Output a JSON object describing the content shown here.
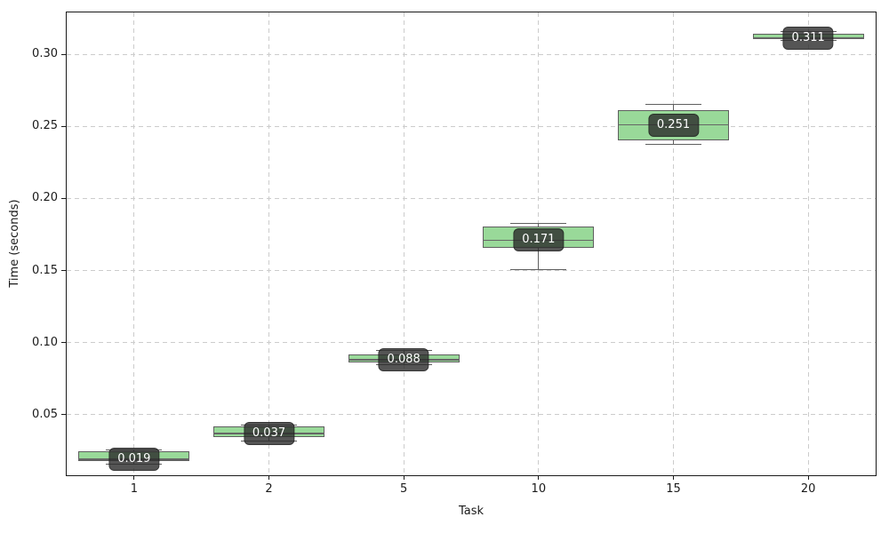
{
  "chart_data": {
    "type": "box",
    "xlabel": "Task",
    "ylabel": "Time (seconds)",
    "categories": [
      "1",
      "2",
      "5",
      "10",
      "15",
      "20"
    ],
    "ylim": [
      0.008,
      0.329
    ],
    "yticks": [
      0.05,
      0.1,
      0.15,
      0.2,
      0.25,
      0.3
    ],
    "grid": {
      "visible": true,
      "style": "dashed",
      "axes": "both"
    },
    "boxes": [
      {
        "category": "1",
        "whislo": 0.0155,
        "q1": 0.018,
        "median": 0.019,
        "q3": 0.0245,
        "whishi": 0.0255,
        "label": "0.019"
      },
      {
        "category": "2",
        "whislo": 0.0315,
        "q1": 0.0345,
        "median": 0.037,
        "q3": 0.042,
        "whishi": 0.043,
        "label": "0.037"
      },
      {
        "category": "5",
        "whislo": 0.085,
        "q1": 0.086,
        "median": 0.088,
        "q3": 0.0915,
        "whishi": 0.0945,
        "label": "0.088"
      },
      {
        "category": "10",
        "whislo": 0.1505,
        "q1": 0.1655,
        "median": 0.171,
        "q3": 0.1805,
        "whishi": 0.1825,
        "label": "0.171"
      },
      {
        "category": "15",
        "whislo": 0.2375,
        "q1": 0.2405,
        "median": 0.251,
        "q3": 0.2615,
        "whishi": 0.2655,
        "label": "0.251"
      },
      {
        "category": "20",
        "whislo": 0.3095,
        "q1": 0.3105,
        "median": 0.311,
        "q3": 0.3145,
        "whishi": 0.3155,
        "label": "0.311"
      }
    ],
    "colors": {
      "box_fill": "#99d999",
      "box_edge": "#5f5f5f",
      "whisker": "#5f5f5f",
      "median": "#666666",
      "grid": "#cccccc",
      "spine": "#1a1a1a",
      "tick_text": "#1a1a1a",
      "annotation_bg": "rgba(43,43,43,0.8)",
      "annotation_border": "rgba(0,0,0,0.35)",
      "annotation_text": "#ffffff"
    }
  }
}
